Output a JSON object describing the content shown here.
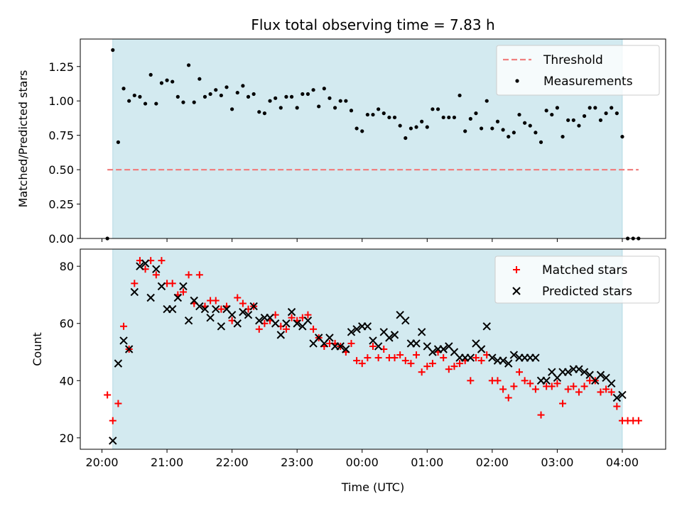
{
  "chart_data": [
    {
      "type": "scatter",
      "title": "Flux total observing time = 7.83 h",
      "xlabel": "",
      "ylabel": "Matched/Predicted stars",
      "xlim": [
        "2024-01-01T19:40",
        "2024-01-02T04:40"
      ],
      "ylim": [
        0,
        1.45
      ],
      "xticks": [
        "20:00",
        "21:00",
        "22:00",
        "23:00",
        "00:00",
        "01:00",
        "02:00",
        "03:00",
        "04:00"
      ],
      "yticks": [
        "0.00",
        "0.25",
        "0.50",
        "0.75",
        "1.00",
        "1.25"
      ],
      "shaded_region": [
        "2024-01-01T20:10",
        "2024-01-02T04:00"
      ],
      "shade_color": "#d3eaf0",
      "legend_placement": "upper right",
      "threshold": {
        "name": "Threshold",
        "value": 0.5,
        "x_range": [
          "2024-01-01T20:05",
          "2024-01-02T04:15"
        ],
        "color": "#f08080",
        "style": "dashed"
      },
      "series": [
        {
          "name": "Measurements",
          "marker": "dot",
          "color": "#000000",
          "x": [
            "2024-01-01T20:05",
            "2024-01-01T20:10",
            "2024-01-01T20:15",
            "2024-01-01T20:20",
            "2024-01-01T20:25",
            "2024-01-01T20:30",
            "2024-01-01T20:35",
            "2024-01-01T20:40",
            "2024-01-01T20:45",
            "2024-01-01T20:50",
            "2024-01-01T20:55",
            "2024-01-01T21:00",
            "2024-01-01T21:05",
            "2024-01-01T21:10",
            "2024-01-01T21:15",
            "2024-01-01T21:20",
            "2024-01-01T21:25",
            "2024-01-01T21:30",
            "2024-01-01T21:35",
            "2024-01-01T21:40",
            "2024-01-01T21:45",
            "2024-01-01T21:50",
            "2024-01-01T21:55",
            "2024-01-01T22:00",
            "2024-01-01T22:05",
            "2024-01-01T22:10",
            "2024-01-01T22:15",
            "2024-01-01T22:20",
            "2024-01-01T22:25",
            "2024-01-01T22:30",
            "2024-01-01T22:35",
            "2024-01-01T22:40",
            "2024-01-01T22:45",
            "2024-01-01T22:50",
            "2024-01-01T22:55",
            "2024-01-01T23:00",
            "2024-01-01T23:05",
            "2024-01-01T23:10",
            "2024-01-01T23:15",
            "2024-01-01T23:20",
            "2024-01-01T23:25",
            "2024-01-01T23:30",
            "2024-01-01T23:35",
            "2024-01-01T23:40",
            "2024-01-01T23:45",
            "2024-01-01T23:50",
            "2024-01-01T23:55",
            "2024-01-02T00:00",
            "2024-01-02T00:05",
            "2024-01-02T00:10",
            "2024-01-02T00:15",
            "2024-01-02T00:20",
            "2024-01-02T00:25",
            "2024-01-02T00:30",
            "2024-01-02T00:35",
            "2024-01-02T00:40",
            "2024-01-02T00:45",
            "2024-01-02T00:50",
            "2024-01-02T00:55",
            "2024-01-02T01:00",
            "2024-01-02T01:05",
            "2024-01-02T01:10",
            "2024-01-02T01:15",
            "2024-01-02T01:20",
            "2024-01-02T01:25",
            "2024-01-02T01:30",
            "2024-01-02T01:35",
            "2024-01-02T01:40",
            "2024-01-02T01:45",
            "2024-01-02T01:50",
            "2024-01-02T01:55",
            "2024-01-02T02:00",
            "2024-01-02T02:05",
            "2024-01-02T02:10",
            "2024-01-02T02:15",
            "2024-01-02T02:20",
            "2024-01-02T02:25",
            "2024-01-02T02:30",
            "2024-01-02T02:35",
            "2024-01-02T02:40",
            "2024-01-02T02:45",
            "2024-01-02T02:50",
            "2024-01-02T02:55",
            "2024-01-02T03:00",
            "2024-01-02T03:05",
            "2024-01-02T03:10",
            "2024-01-02T03:15",
            "2024-01-02T03:20",
            "2024-01-02T03:25",
            "2024-01-02T03:30",
            "2024-01-02T03:35",
            "2024-01-02T03:40",
            "2024-01-02T03:45",
            "2024-01-02T03:50",
            "2024-01-02T03:55",
            "2024-01-02T04:00",
            "2024-01-02T04:05",
            "2024-01-02T04:10",
            "2024-01-02T04:15"
          ],
          "y": [
            0.0,
            1.37,
            0.7,
            1.09,
            1.0,
            1.04,
            1.03,
            0.98,
            1.19,
            0.98,
            1.13,
            1.15,
            1.14,
            1.03,
            0.99,
            1.26,
            0.99,
            1.16,
            1.03,
            1.05,
            1.08,
            1.04,
            1.1,
            0.94,
            1.06,
            1.11,
            1.03,
            1.05,
            0.92,
            0.91,
            1.0,
            1.02,
            0.95,
            1.03,
            1.03,
            0.95,
            1.05,
            1.05,
            1.08,
            0.96,
            1.09,
            1.02,
            0.95,
            1.0,
            1.0,
            0.93,
            0.8,
            0.78,
            0.9,
            0.9,
            0.94,
            0.91,
            0.88,
            0.88,
            0.82,
            0.73,
            0.8,
            0.81,
            0.85,
            0.81,
            0.94,
            0.94,
            0.88,
            0.88,
            0.88,
            1.04,
            0.78,
            0.87,
            0.91,
            0.8,
            1.0,
            0.8,
            0.85,
            0.79,
            0.74,
            0.77,
            0.9,
            0.84,
            0.82,
            0.77,
            0.7,
            0.93,
            0.9,
            0.95,
            0.74,
            0.86,
            0.86,
            0.82,
            0.89,
            0.95,
            0.95,
            0.86,
            0.91,
            0.95,
            0.91,
            0.74,
            0.0,
            0.0,
            0.0
          ]
        }
      ]
    },
    {
      "type": "scatter",
      "title": "",
      "xlabel": "Time (UTC)",
      "ylabel": "Count",
      "xlim": [
        "2024-01-01T19:40",
        "2024-01-02T04:40"
      ],
      "ylim": [
        16,
        86
      ],
      "xticks": [
        "20:00",
        "21:00",
        "22:00",
        "23:00",
        "00:00",
        "01:00",
        "02:00",
        "03:00",
        "04:00"
      ],
      "yticks": [
        "20",
        "40",
        "60",
        "80"
      ],
      "shaded_region": [
        "2024-01-01T20:10",
        "2024-01-02T04:00"
      ],
      "shade_color": "#d3eaf0",
      "legend_placement": "upper right",
      "series": [
        {
          "name": "Matched stars",
          "marker": "plus",
          "color": "#ff0000",
          "x": [
            "2024-01-01T20:05",
            "2024-01-01T20:10",
            "2024-01-01T20:15",
            "2024-01-01T20:20",
            "2024-01-01T20:25",
            "2024-01-01T20:30",
            "2024-01-01T20:35",
            "2024-01-01T20:40",
            "2024-01-01T20:45",
            "2024-01-01T20:50",
            "2024-01-01T20:55",
            "2024-01-01T21:00",
            "2024-01-01T21:05",
            "2024-01-01T21:10",
            "2024-01-01T21:15",
            "2024-01-01T21:20",
            "2024-01-01T21:25",
            "2024-01-01T21:30",
            "2024-01-01T21:35",
            "2024-01-01T21:40",
            "2024-01-01T21:45",
            "2024-01-01T21:50",
            "2024-01-01T21:55",
            "2024-01-01T22:00",
            "2024-01-01T22:05",
            "2024-01-01T22:10",
            "2024-01-01T22:15",
            "2024-01-01T22:20",
            "2024-01-01T22:25",
            "2024-01-01T22:30",
            "2024-01-01T22:35",
            "2024-01-01T22:40",
            "2024-01-01T22:45",
            "2024-01-01T22:50",
            "2024-01-01T22:55",
            "2024-01-01T23:00",
            "2024-01-01T23:05",
            "2024-01-01T23:10",
            "2024-01-01T23:15",
            "2024-01-01T23:20",
            "2024-01-01T23:25",
            "2024-01-01T23:30",
            "2024-01-01T23:35",
            "2024-01-01T23:40",
            "2024-01-01T23:45",
            "2024-01-01T23:50",
            "2024-01-01T23:55",
            "2024-01-02T00:00",
            "2024-01-02T00:05",
            "2024-01-02T00:10",
            "2024-01-02T00:15",
            "2024-01-02T00:20",
            "2024-01-02T00:25",
            "2024-01-02T00:30",
            "2024-01-02T00:35",
            "2024-01-02T00:40",
            "2024-01-02T00:45",
            "2024-01-02T00:50",
            "2024-01-02T00:55",
            "2024-01-02T01:00",
            "2024-01-02T01:05",
            "2024-01-02T01:10",
            "2024-01-02T01:15",
            "2024-01-02T01:20",
            "2024-01-02T01:25",
            "2024-01-02T01:30",
            "2024-01-02T01:35",
            "2024-01-02T01:40",
            "2024-01-02T01:45",
            "2024-01-02T01:50",
            "2024-01-02T01:55",
            "2024-01-02T02:00",
            "2024-01-02T02:05",
            "2024-01-02T02:10",
            "2024-01-02T02:15",
            "2024-01-02T02:20",
            "2024-01-02T02:25",
            "2024-01-02T02:30",
            "2024-01-02T02:35",
            "2024-01-02T02:40",
            "2024-01-02T02:45",
            "2024-01-02T02:50",
            "2024-01-02T02:55",
            "2024-01-02T03:00",
            "2024-01-02T03:05",
            "2024-01-02T03:10",
            "2024-01-02T03:15",
            "2024-01-02T03:20",
            "2024-01-02T03:25",
            "2024-01-02T03:30",
            "2024-01-02T03:35",
            "2024-01-02T03:40",
            "2024-01-02T03:45",
            "2024-01-02T03:50",
            "2024-01-02T03:55",
            "2024-01-02T04:00",
            "2024-01-02T04:05",
            "2024-01-02T04:10",
            "2024-01-02T04:15"
          ],
          "y": [
            35,
            26,
            32,
            59,
            51,
            74,
            82,
            79,
            82,
            77,
            82,
            74,
            74,
            70,
            71,
            77,
            67,
            77,
            66,
            68,
            68,
            65,
            66,
            61,
            69,
            67,
            65,
            66,
            58,
            60,
            61,
            63,
            59,
            58,
            62,
            61,
            62,
            63,
            58,
            55,
            52,
            53,
            53,
            52,
            50,
            53,
            47,
            46,
            48,
            52,
            48,
            51,
            48,
            48,
            49,
            47,
            46,
            49,
            43,
            45,
            46,
            50,
            48,
            44,
            45,
            46,
            47,
            40,
            48,
            47,
            49,
            40,
            40,
            37,
            34,
            38,
            43,
            40,
            39,
            37,
            28,
            38,
            38,
            39,
            32,
            37,
            38,
            36,
            38,
            40,
            40,
            36,
            37,
            36,
            31,
            26,
            26,
            26,
            26
          ]
        },
        {
          "name": "Predicted stars",
          "marker": "x",
          "color": "#000000",
          "x": [
            "2024-01-01T20:10",
            "2024-01-01T20:15",
            "2024-01-01T20:20",
            "2024-01-01T20:25",
            "2024-01-01T20:30",
            "2024-01-01T20:35",
            "2024-01-01T20:40",
            "2024-01-01T20:45",
            "2024-01-01T20:50",
            "2024-01-01T20:55",
            "2024-01-01T21:00",
            "2024-01-01T21:05",
            "2024-01-01T21:10",
            "2024-01-01T21:15",
            "2024-01-01T21:20",
            "2024-01-01T21:25",
            "2024-01-01T21:30",
            "2024-01-01T21:35",
            "2024-01-01T21:40",
            "2024-01-01T21:45",
            "2024-01-01T21:50",
            "2024-01-01T21:55",
            "2024-01-01T22:00",
            "2024-01-01T22:05",
            "2024-01-01T22:10",
            "2024-01-01T22:15",
            "2024-01-01T22:20",
            "2024-01-01T22:25",
            "2024-01-01T22:30",
            "2024-01-01T22:35",
            "2024-01-01T22:40",
            "2024-01-01T22:45",
            "2024-01-01T22:50",
            "2024-01-01T22:55",
            "2024-01-01T23:00",
            "2024-01-01T23:05",
            "2024-01-01T23:10",
            "2024-01-01T23:15",
            "2024-01-01T23:20",
            "2024-01-01T23:25",
            "2024-01-01T23:30",
            "2024-01-01T23:35",
            "2024-01-01T23:40",
            "2024-01-01T23:45",
            "2024-01-01T23:50",
            "2024-01-01T23:55",
            "2024-01-02T00:00",
            "2024-01-02T00:05",
            "2024-01-02T00:10",
            "2024-01-02T00:15",
            "2024-01-02T00:20",
            "2024-01-02T00:25",
            "2024-01-02T00:30",
            "2024-01-02T00:35",
            "2024-01-02T00:40",
            "2024-01-02T00:45",
            "2024-01-02T00:50",
            "2024-01-02T00:55",
            "2024-01-02T01:00",
            "2024-01-02T01:05",
            "2024-01-02T01:10",
            "2024-01-02T01:15",
            "2024-01-02T01:20",
            "2024-01-02T01:25",
            "2024-01-02T01:30",
            "2024-01-02T01:35",
            "2024-01-02T01:40",
            "2024-01-02T01:45",
            "2024-01-02T01:50",
            "2024-01-02T01:55",
            "2024-01-02T02:00",
            "2024-01-02T02:05",
            "2024-01-02T02:10",
            "2024-01-02T02:15",
            "2024-01-02T02:20",
            "2024-01-02T02:25",
            "2024-01-02T02:30",
            "2024-01-02T02:35",
            "2024-01-02T02:40",
            "2024-01-02T02:45",
            "2024-01-02T02:50",
            "2024-01-02T02:55",
            "2024-01-02T03:00",
            "2024-01-02T03:05",
            "2024-01-02T03:10",
            "2024-01-02T03:15",
            "2024-01-02T03:20",
            "2024-01-02T03:25",
            "2024-01-02T03:30",
            "2024-01-02T03:35",
            "2024-01-02T03:40",
            "2024-01-02T03:45",
            "2024-01-02T03:50",
            "2024-01-02T03:55",
            "2024-01-02T04:00"
          ],
          "y": [
            19,
            46,
            54,
            51,
            71,
            80,
            81,
            69,
            79,
            73,
            65,
            65,
            69,
            73,
            61,
            68,
            66,
            65,
            62,
            65,
            59,
            65,
            63,
            60,
            64,
            63,
            66,
            61,
            62,
            62,
            60,
            56,
            60,
            64,
            60,
            59,
            61,
            53,
            55,
            53,
            55,
            52,
            52,
            51,
            57,
            58,
            59,
            59,
            54,
            52,
            57,
            55,
            56,
            63,
            61,
            53,
            53,
            57,
            52,
            50,
            51,
            51,
            52,
            50,
            48,
            48,
            48,
            53,
            51,
            59,
            48,
            47,
            47,
            46,
            49,
            48,
            48,
            48,
            48,
            40,
            40,
            43,
            41,
            43,
            43,
            44,
            44,
            43,
            42,
            40,
            42,
            41,
            39,
            34,
            35
          ]
        }
      ]
    }
  ]
}
